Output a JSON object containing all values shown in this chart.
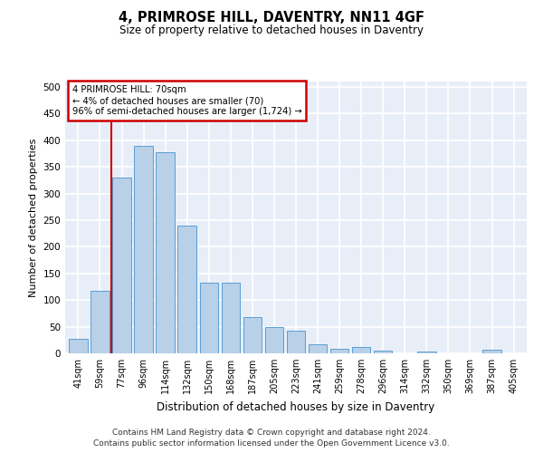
{
  "title": "4, PRIMROSE HILL, DAVENTRY, NN11 4GF",
  "subtitle": "Size of property relative to detached houses in Daventry",
  "xlabel": "Distribution of detached houses by size in Daventry",
  "ylabel": "Number of detached properties",
  "categories": [
    "41sqm",
    "59sqm",
    "77sqm",
    "96sqm",
    "114sqm",
    "132sqm",
    "150sqm",
    "168sqm",
    "187sqm",
    "205sqm",
    "223sqm",
    "241sqm",
    "259sqm",
    "278sqm",
    "296sqm",
    "314sqm",
    "332sqm",
    "350sqm",
    "369sqm",
    "387sqm",
    "405sqm"
  ],
  "values": [
    28,
    118,
    330,
    390,
    378,
    240,
    133,
    133,
    68,
    50,
    43,
    17,
    8,
    12,
    5,
    0,
    3,
    0,
    0,
    7,
    0
  ],
  "bar_color": "#b8d0e8",
  "bar_edge_color": "#5a9fd4",
  "vline_x": 1.5,
  "vline_color": "#cc0000",
  "annotation_text": "4 PRIMROSE HILL: 70sqm\n← 4% of detached houses are smaller (70)\n96% of semi-detached houses are larger (1,724) →",
  "annotation_box_color": "#ffffff",
  "annotation_box_edge": "#cc0000",
  "ylim": [
    0,
    510
  ],
  "yticks": [
    0,
    50,
    100,
    150,
    200,
    250,
    300,
    350,
    400,
    450,
    500
  ],
  "background_color": "#e8eef8",
  "grid_color": "#ffffff",
  "fig_background": "#ffffff",
  "footer_line1": "Contains HM Land Registry data © Crown copyright and database right 2024.",
  "footer_line2": "Contains public sector information licensed under the Open Government Licence v3.0."
}
